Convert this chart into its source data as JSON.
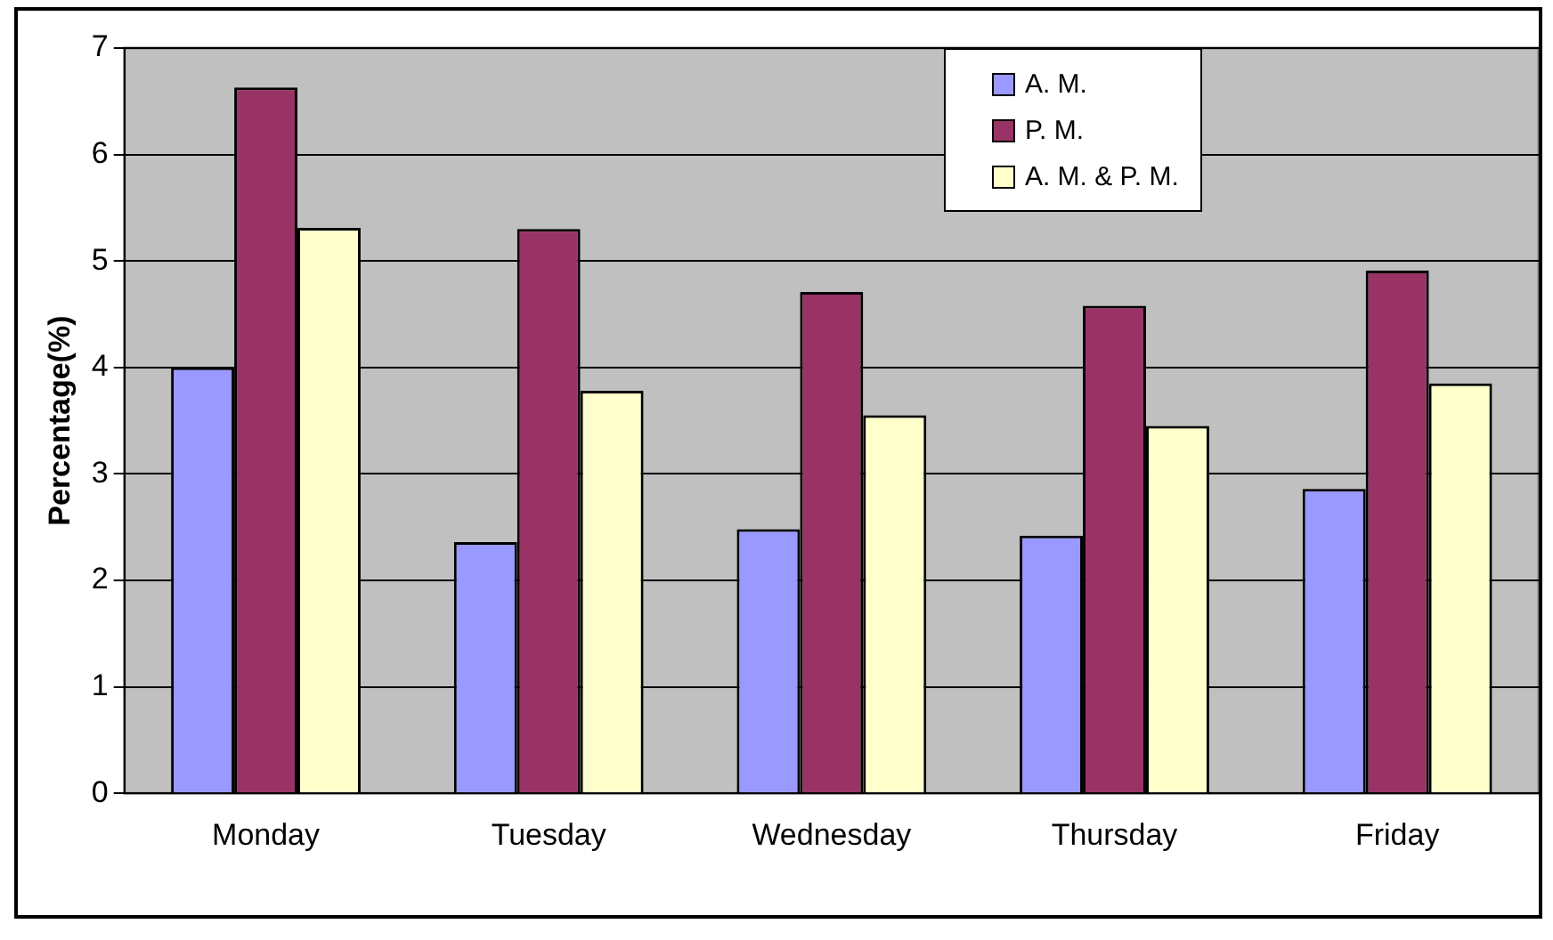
{
  "chart_data": {
    "type": "bar",
    "ylabel": "Percentage(%)",
    "categories": [
      "Monday",
      "Tuesday",
      "Wednesday",
      "Thursday",
      "Friday"
    ],
    "series": [
      {
        "name": "A. M.",
        "color": "#9999ff",
        "values": [
          4.0,
          2.36,
          2.48,
          2.42,
          2.86
        ]
      },
      {
        "name": "P. M.",
        "color": "#993366",
        "values": [
          6.63,
          5.3,
          4.71,
          4.58,
          4.91
        ]
      },
      {
        "name": "A. M. & P. M.",
        "color": "#ffffcc",
        "values": [
          5.31,
          3.78,
          3.55,
          3.45,
          3.85
        ]
      }
    ],
    "ylim": [
      0,
      7
    ],
    "yticks": [
      0,
      1,
      2,
      3,
      4,
      5,
      6,
      7
    ],
    "grid": "y",
    "legend": "top"
  }
}
